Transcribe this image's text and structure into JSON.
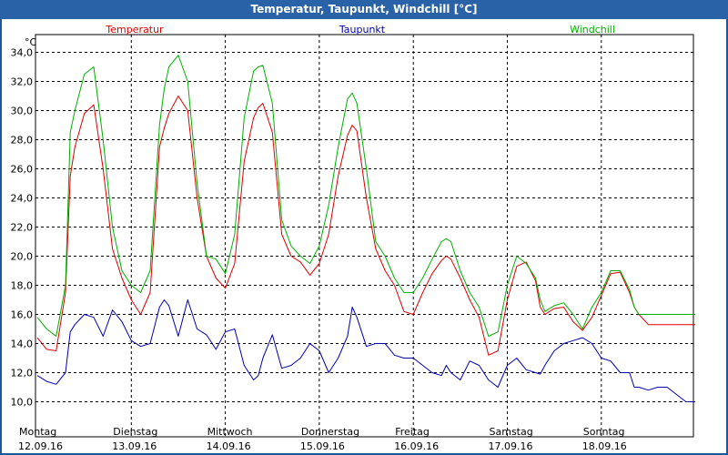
{
  "window": {
    "title": "Temperatur, Taupunkt, Windchill [°C]"
  },
  "chart_data": {
    "type": "line",
    "title": "Temperatur, Taupunkt, Windchill [°C]",
    "ylabel": "°C",
    "ylim": [
      9.0,
      35.0
    ],
    "y_ticks": [
      "34,0",
      "32,0",
      "30,0",
      "28,0",
      "26,0",
      "24,0",
      "22,0",
      "20,0",
      "18,0",
      "16,0",
      "14,0",
      "12,0",
      "10,0"
    ],
    "day_labels": [
      {
        "day": "Montag",
        "date": "12.09.16"
      },
      {
        "day": "Dienstag",
        "date": "13.09.16"
      },
      {
        "day": "Mittwoch",
        "date": "14.09.16"
      },
      {
        "day": "Donnerstag",
        "date": "15.09.16"
      },
      {
        "day": "Freitag",
        "date": "16.09.16"
      },
      {
        "day": "Samstag",
        "date": "17.09.16"
      },
      {
        "day": "Sonntag",
        "date": "18.09.16"
      }
    ],
    "x_unit": "days since 12.09.16 00:00",
    "x": [
      0.0,
      0.1,
      0.2,
      0.3,
      0.35,
      0.4,
      0.5,
      0.6,
      0.7,
      0.8,
      0.9,
      1.0,
      1.1,
      1.2,
      1.3,
      1.35,
      1.4,
      1.5,
      1.6,
      1.7,
      1.8,
      1.9,
      2.0,
      2.1,
      2.2,
      2.3,
      2.35,
      2.4,
      2.5,
      2.6,
      2.7,
      2.8,
      2.9,
      3.0,
      3.1,
      3.2,
      3.3,
      3.35,
      3.4,
      3.5,
      3.6,
      3.7,
      3.8,
      3.9,
      4.0,
      4.1,
      4.2,
      4.3,
      4.35,
      4.4,
      4.5,
      4.6,
      4.7,
      4.8,
      4.9,
      5.0,
      5.1,
      5.2,
      5.3,
      5.35,
      5.4,
      5.5,
      5.6,
      5.7,
      5.8,
      5.9,
      6.0,
      6.1,
      6.2,
      6.3,
      6.35,
      6.4,
      6.5,
      6.6,
      6.7,
      6.8,
      6.9,
      7.0
    ],
    "series": [
      {
        "name": "Temperatur",
        "color": "#e00000",
        "values": [
          14.4,
          13.6,
          13.5,
          17.5,
          25.5,
          27.5,
          29.8,
          30.4,
          26.0,
          20.5,
          18.5,
          17.0,
          16.0,
          17.5,
          27.5,
          28.8,
          29.8,
          31.0,
          30.0,
          24.0,
          20.0,
          18.5,
          17.8,
          19.5,
          26.5,
          29.5,
          30.2,
          30.5,
          28.5,
          21.5,
          20.0,
          19.6,
          18.7,
          19.5,
          21.5,
          25.5,
          28.3,
          29.0,
          28.6,
          24.0,
          20.5,
          19.0,
          18.0,
          16.2,
          16.0,
          17.5,
          18.8,
          19.7,
          20.0,
          19.8,
          18.5,
          17.0,
          15.8,
          13.2,
          13.5,
          17.0,
          19.3,
          19.6,
          18.3,
          16.5,
          16.0,
          16.4,
          16.5,
          15.5,
          14.9,
          15.8,
          17.3,
          18.8,
          18.9,
          17.5,
          16.5,
          16.0,
          15.3,
          15.3,
          15.3,
          15.3,
          15.3,
          15.3
        ]
      },
      {
        "name": "Taupunkt",
        "color": "#0000b0",
        "values": [
          11.8,
          11.4,
          11.2,
          12.0,
          14.8,
          15.3,
          16.0,
          15.8,
          14.5,
          16.3,
          15.5,
          14.2,
          13.8,
          14.0,
          16.5,
          17.0,
          16.6,
          14.5,
          17.0,
          15.0,
          14.6,
          13.6,
          14.8,
          15.0,
          12.5,
          11.5,
          11.8,
          13.0,
          14.6,
          12.3,
          12.5,
          13.0,
          14.0,
          13.5,
          12.0,
          13.0,
          14.5,
          16.5,
          15.8,
          13.8,
          14.0,
          14.0,
          13.2,
          13.0,
          13.0,
          12.5,
          12.0,
          11.8,
          12.5,
          12.0,
          11.5,
          12.8,
          12.5,
          11.5,
          11.0,
          12.5,
          13.0,
          12.2,
          12.0,
          11.9,
          12.5,
          13.5,
          14.0,
          14.2,
          14.4,
          14.0,
          13.0,
          12.8,
          12.0,
          12.0,
          11.0,
          11.0,
          10.8,
          11.0,
          11.0,
          10.5,
          10.0,
          10.0
        ]
      },
      {
        "name": "Windchill",
        "color": "#00b000",
        "values": [
          15.8,
          15.0,
          14.5,
          18.0,
          28.5,
          30.0,
          32.5,
          33.0,
          28.0,
          22.0,
          19.0,
          18.0,
          17.5,
          19.0,
          29.0,
          31.5,
          33.0,
          33.8,
          32.0,
          25.0,
          20.0,
          19.8,
          18.8,
          21.5,
          29.5,
          32.7,
          33.0,
          33.1,
          30.5,
          22.5,
          20.7,
          20.0,
          19.5,
          20.7,
          23.5,
          27.5,
          30.8,
          31.2,
          30.5,
          26.0,
          21.0,
          20.0,
          18.5,
          17.5,
          17.5,
          18.5,
          19.8,
          21.0,
          21.2,
          21.0,
          19.0,
          17.5,
          16.5,
          14.5,
          14.8,
          18.0,
          20.0,
          19.5,
          18.5,
          17.0,
          16.2,
          16.6,
          16.8,
          16.0,
          15.0,
          16.5,
          17.5,
          19.0,
          19.0,
          17.7,
          16.5,
          16.0,
          16.0,
          16.0,
          16.0,
          16.0,
          16.0,
          16.0
        ]
      }
    ]
  }
}
